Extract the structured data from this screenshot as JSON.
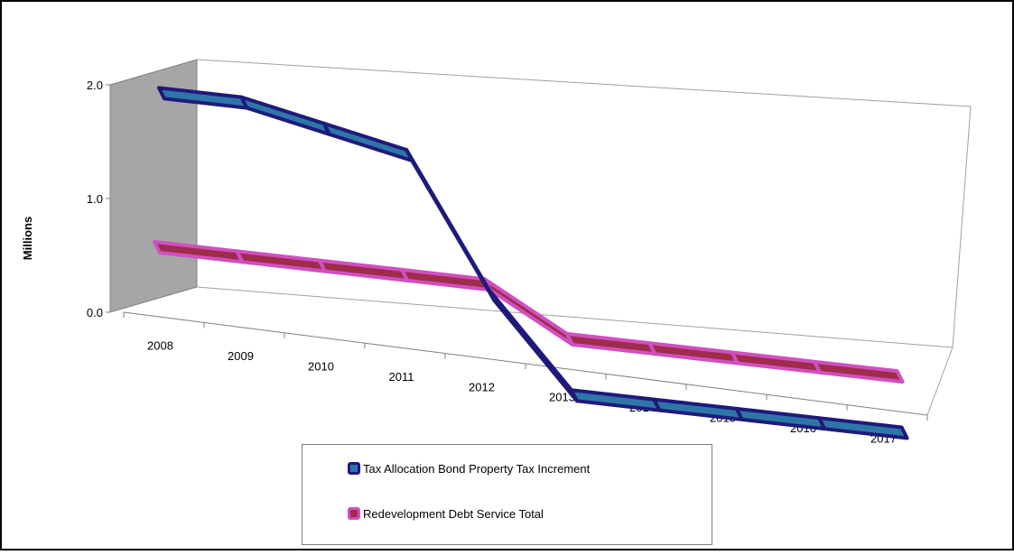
{
  "chart_data": {
    "type": "line",
    "title": "",
    "xlabel": "",
    "ylabel": "Millions",
    "ylim": [
      0,
      2
    ],
    "yticks": [
      "0.0",
      "1.0",
      "2.0"
    ],
    "categories": [
      "2008",
      "2009",
      "2010",
      "2011",
      "2012",
      "2013",
      "2014",
      "2015",
      "2016",
      "2017"
    ],
    "grid": false,
    "legend_position": "bottom",
    "series": [
      {
        "name": "Tax Allocation Bond Property Tax Increment",
        "color": "#2f76a8",
        "edge_color": "#1f1a7a",
        "values": [
          1.95,
          1.95,
          1.8,
          1.65,
          0.5,
          -0.3,
          -0.3,
          -0.3,
          -0.3,
          -0.3
        ]
      },
      {
        "name": "Redevelopment Debt Service Total",
        "color": "#9e2c4a",
        "edge_color": "#d04fc0",
        "values": [
          0.5,
          0.5,
          0.5,
          0.5,
          0.5,
          0.1,
          0.1,
          0.1,
          0.1,
          0.1
        ]
      }
    ]
  }
}
